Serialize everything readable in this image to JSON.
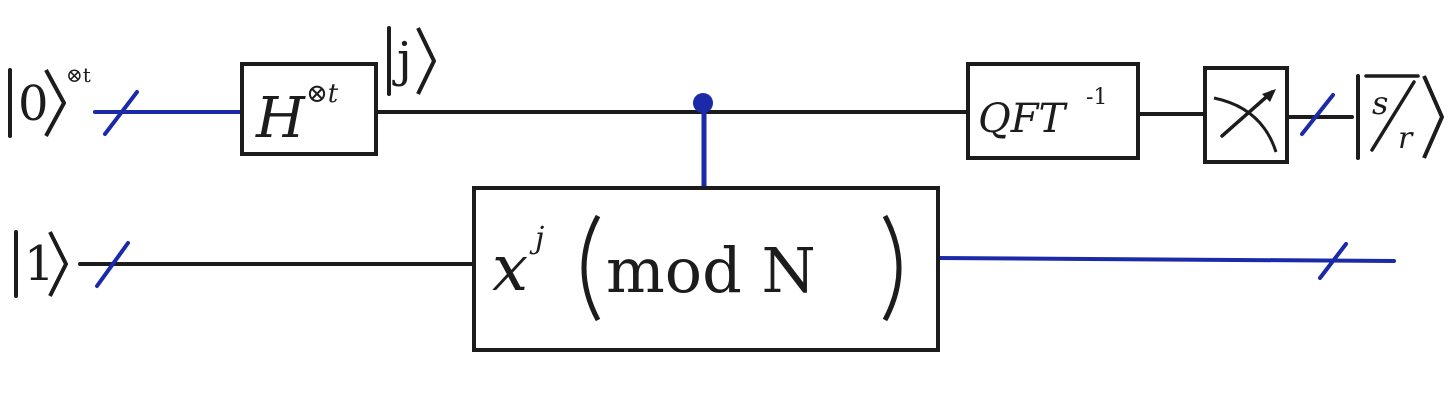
{
  "inputs": {
    "top": {
      "ket": "0",
      "power": "⊗t"
    },
    "bottom": {
      "ket": "1"
    }
  },
  "gates": {
    "hadamard": {
      "base": "H",
      "power": "⊗t"
    },
    "modexp": {
      "base": "x",
      "power": "j",
      "text": "mod N"
    },
    "qft": {
      "base": "QFT",
      "power": "-1"
    }
  },
  "labels": {
    "j_ket": "j"
  },
  "output": {
    "numerator": "s",
    "denominator": "r"
  },
  "colors": {
    "wire_black": "#1c1c1c",
    "wire_blue": "#1a2aa8",
    "box_stroke": "#1c1c1c"
  }
}
